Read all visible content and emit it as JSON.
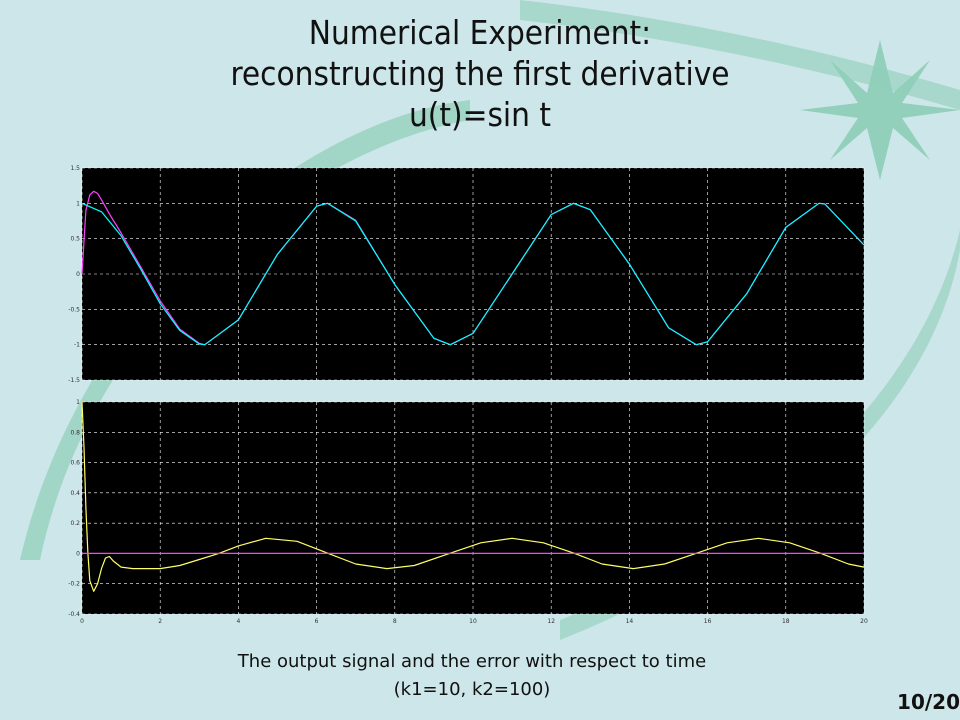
{
  "slide": {
    "title_lines": [
      "Numerical Experiment:",
      "reconstructing the first derivative",
      "u(t)=sin t"
    ],
    "caption_lines": [
      "The output signal and the error with respect to time",
      "(k1=10, k2=100)"
    ],
    "page_number": "10/20",
    "background_color": "#cde6ea",
    "swoosh_color": "#8fcfb8"
  },
  "chart_data": [
    {
      "type": "line",
      "description_source": "top scope",
      "xlim": [
        0,
        20
      ],
      "ylim": [
        -1.5,
        1.5
      ],
      "x_ticks": [
        0,
        2,
        4,
        6,
        8,
        10,
        12,
        14,
        16,
        18,
        20
      ],
      "y_ticks": [
        -1.5,
        -1,
        -0.5,
        0,
        0.5,
        1,
        1.5
      ],
      "y_tick_labels": [
        "-1.5",
        "-1",
        "-0.5",
        "0",
        "0.5",
        "1",
        "1.5"
      ],
      "grid": true,
      "background": "#000000",
      "series": [
        {
          "color": "#ff40ff",
          "x": [
            0,
            0.1,
            0.2,
            0.3,
            0.4,
            0.5,
            0.7,
            1,
            1.5,
            2,
            2.5,
            3,
            3.14,
            4,
            5,
            6,
            6.28,
            7,
            8,
            9,
            9.42,
            10,
            11,
            12,
            12.57,
            13,
            14,
            15,
            15.71,
            16,
            17,
            18,
            18.85,
            19,
            20
          ],
          "y": [
            0,
            0.9,
            1.12,
            1.17,
            1.14,
            1.05,
            0.85,
            0.58,
            0.1,
            -0.38,
            -0.78,
            -0.98,
            -1.0,
            -0.65,
            0.28,
            0.96,
            1.0,
            0.76,
            -0.15,
            -0.91,
            -1.0,
            -0.84,
            0.0,
            0.84,
            1.0,
            0.91,
            0.14,
            -0.76,
            -1.0,
            -0.96,
            -0.28,
            0.66,
            1.0,
            0.99,
            0.41
          ]
        },
        {
          "color": "#00ffff",
          "x": [
            0,
            0.5,
            1,
            1.5,
            2,
            2.5,
            3,
            3.14,
            4,
            5,
            6,
            6.28,
            7,
            8,
            9,
            9.42,
            10,
            11,
            12,
            12.57,
            13,
            14,
            15,
            15.71,
            16,
            17,
            18,
            18.85,
            19,
            20
          ],
          "y": [
            1,
            0.88,
            0.54,
            0.07,
            -0.42,
            -0.8,
            -0.99,
            -1.0,
            -0.65,
            0.28,
            0.96,
            1.0,
            0.75,
            -0.15,
            -0.91,
            -1.0,
            -0.84,
            0.0,
            0.84,
            1.0,
            0.91,
            0.14,
            -0.76,
            -1.0,
            -0.96,
            -0.28,
            0.66,
            1.0,
            0.99,
            0.41
          ]
        }
      ]
    },
    {
      "type": "line",
      "description_source": "bottom scope",
      "xlim": [
        0,
        20
      ],
      "ylim": [
        -0.4,
        1
      ],
      "x_ticks": [
        0,
        2,
        4,
        6,
        8,
        10,
        12,
        14,
        16,
        18,
        20
      ],
      "x_tick_labels": [
        "0",
        "2",
        "4",
        "6",
        "8",
        "10",
        "12",
        "14",
        "16",
        "18",
        "20"
      ],
      "y_ticks": [
        -0.4,
        -0.2,
        0,
        0.2,
        0.4,
        0.6,
        0.8,
        1
      ],
      "y_tick_labels": [
        "-0.4",
        "-0.2",
        "0",
        "0.2",
        "0.4",
        "0.6",
        "0.8",
        "1"
      ],
      "grid": true,
      "background": "#000000",
      "series": [
        {
          "color": "#ffff66",
          "x": [
            0,
            0.05,
            0.1,
            0.15,
            0.2,
            0.3,
            0.4,
            0.5,
            0.6,
            0.7,
            0.8,
            1,
            1.3,
            1.5,
            2,
            2.5,
            3,
            3.5,
            4,
            4.7,
            5.5,
            6.3,
            7,
            7.8,
            8.5,
            9.4,
            10.2,
            11,
            11.8,
            12.6,
            13.3,
            14.1,
            14.9,
            15.7,
            16.5,
            17.3,
            18.1,
            18.9,
            19.6,
            20
          ],
          "y": [
            1.0,
            0.7,
            0.3,
            0.0,
            -0.18,
            -0.25,
            -0.2,
            -0.1,
            -0.03,
            -0.02,
            -0.05,
            -0.09,
            -0.1,
            -0.1,
            -0.1,
            -0.08,
            -0.04,
            0.0,
            0.05,
            0.1,
            0.08,
            0.0,
            -0.07,
            -0.1,
            -0.08,
            0.0,
            0.07,
            0.1,
            0.07,
            0.0,
            -0.07,
            -0.1,
            -0.07,
            0.0,
            0.07,
            0.1,
            0.07,
            0.0,
            -0.07,
            -0.09
          ]
        },
        {
          "color": "#ff40ff",
          "x": [
            0,
            20
          ],
          "y": [
            0,
            0
          ]
        }
      ]
    }
  ]
}
